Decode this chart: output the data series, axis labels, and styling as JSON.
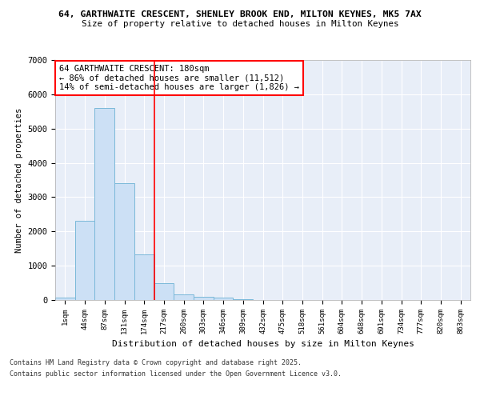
{
  "title1": "64, GARTHWAITE CRESCENT, SHENLEY BROOK END, MILTON KEYNES, MK5 7AX",
  "title2": "Size of property relative to detached houses in Milton Keynes",
  "xlabel": "Distribution of detached houses by size in Milton Keynes",
  "ylabel": "Number of detached properties",
  "categories": [
    "1sqm",
    "44sqm",
    "87sqm",
    "131sqm",
    "174sqm",
    "217sqm",
    "260sqm",
    "303sqm",
    "346sqm",
    "389sqm",
    "432sqm",
    "475sqm",
    "518sqm",
    "561sqm",
    "604sqm",
    "648sqm",
    "691sqm",
    "734sqm",
    "777sqm",
    "820sqm",
    "863sqm"
  ],
  "values": [
    80,
    2300,
    5600,
    3400,
    1330,
    500,
    175,
    90,
    60,
    30,
    0,
    0,
    0,
    0,
    0,
    0,
    0,
    0,
    0,
    0,
    0
  ],
  "bar_color": "#cce0f5",
  "bar_edge_color": "#7ab8d9",
  "vline_color": "red",
  "vline_pos": 4.5,
  "annotation_title": "64 GARTHWAITE CRESCENT: 180sqm",
  "annotation_line1": "← 86% of detached houses are smaller (11,512)",
  "annotation_line2": "14% of semi-detached houses are larger (1,826) →",
  "ylim": [
    0,
    7000
  ],
  "yticks": [
    0,
    1000,
    2000,
    3000,
    4000,
    5000,
    6000,
    7000
  ],
  "bg_color": "#e8eef8",
  "footer1": "Contains HM Land Registry data © Crown copyright and database right 2025.",
  "footer2": "Contains public sector information licensed under the Open Government Licence v3.0."
}
